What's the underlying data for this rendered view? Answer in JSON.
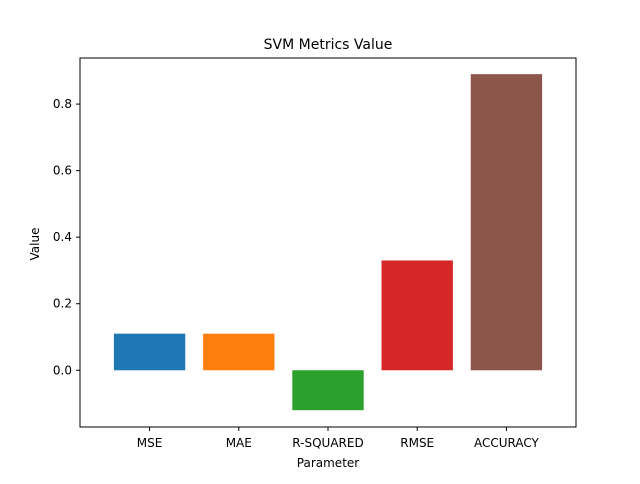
{
  "chart_data": {
    "type": "bar",
    "title": "SVM Metrics Value",
    "xlabel": "Parameter",
    "ylabel": "Value",
    "categories": [
      "MSE",
      "MAE",
      "R-SQUARED",
      "RMSE",
      "ACCURACY"
    ],
    "values": [
      0.11,
      0.11,
      -0.12,
      0.33,
      0.89
    ],
    "colors": [
      "#1f77b4",
      "#ff7f0e",
      "#2ca02c",
      "#d62728",
      "#8c564b"
    ],
    "ylim": [
      -0.1705,
      0.9385
    ],
    "yticks": [
      0.0,
      0.2,
      0.4,
      0.6,
      0.8
    ],
    "ytick_labels": [
      "0.0",
      "0.2",
      "0.4",
      "0.6",
      "0.8"
    ],
    "grid": false,
    "legend": "none"
  }
}
